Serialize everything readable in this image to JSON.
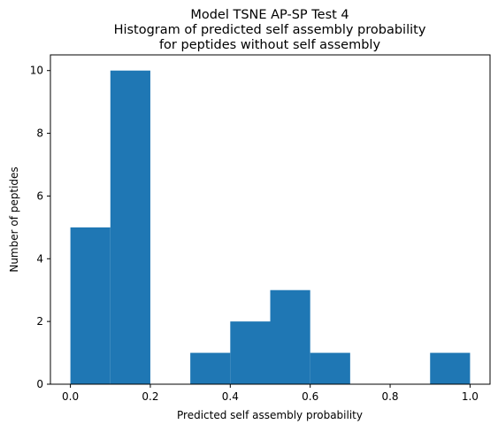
{
  "chart_data": {
    "type": "bar",
    "title_lines": [
      "Model TSNE AP-SP Test 4",
      "Histogram of predicted self assembly probability",
      "for peptides without self assembly"
    ],
    "xlabel": "Predicted self assembly probability",
    "ylabel": "Number of peptides",
    "xlim": [
      -0.05,
      1.05
    ],
    "ylim": [
      0,
      10.5
    ],
    "xticks": [
      "0.0",
      "0.2",
      "0.4",
      "0.6",
      "0.8",
      "1.0"
    ],
    "yticks": [
      "0",
      "2",
      "4",
      "6",
      "8",
      "10"
    ],
    "bin_edges": [
      0.0,
      0.1,
      0.2,
      0.3,
      0.4,
      0.5,
      0.6,
      0.7,
      0.8,
      0.9,
      1.0
    ],
    "values": [
      5,
      10,
      0,
      1,
      2,
      3,
      1,
      0,
      0,
      1
    ],
    "bar_color": "#1f77b4",
    "grid": false,
    "legend": "none"
  }
}
